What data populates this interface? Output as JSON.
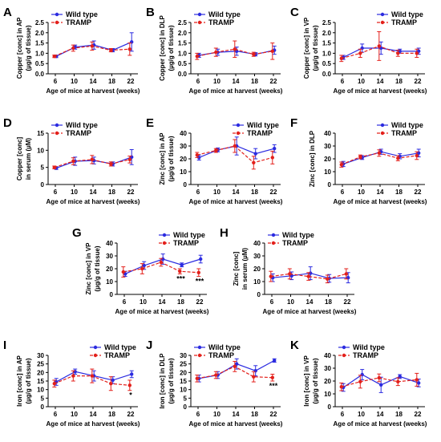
{
  "colors": {
    "wild_type": "#2b2be0",
    "tramp": "#e3201b",
    "axis": "#000000"
  },
  "chart_data": [
    {
      "type": "line",
      "label": "A",
      "x": [
        6,
        10,
        14,
        18,
        22
      ],
      "ylabel": [
        "Copper [conc] in AP",
        "(µg/g of tissue)"
      ],
      "xlabel": "Age of mice at harvest (weeks)",
      "ylim": [
        0,
        2.5
      ],
      "yticks": [
        "0.0",
        "0.5",
        "1.0",
        "1.5",
        "2.0",
        "2.5"
      ],
      "legend": "top-left",
      "series": [
        {
          "name": "Wild type",
          "values": [
            0.85,
            1.3,
            1.4,
            1.15,
            1.55
          ],
          "err": [
            0.06,
            0.1,
            0.2,
            0.08,
            0.45
          ]
        },
        {
          "name": "TRAMP",
          "values": [
            0.85,
            1.25,
            1.35,
            1.15,
            1.2
          ],
          "err": [
            0.06,
            0.15,
            0.2,
            0.08,
            0.3
          ]
        }
      ],
      "annotations": []
    },
    {
      "type": "line",
      "label": "B",
      "x": [
        6,
        10,
        14,
        18,
        22
      ],
      "ylabel": [
        "Copper [conc] in DLP",
        "(µg/g of tissue)"
      ],
      "xlabel": "Age of mice at harvest (weeks)",
      "ylim": [
        0,
        2.5
      ],
      "yticks": [
        "0.0",
        "0.5",
        "1.0",
        "1.5",
        "2.0",
        "2.5"
      ],
      "legend": "top-left",
      "series": [
        {
          "name": "Wild type",
          "values": [
            0.9,
            1.05,
            1.1,
            0.95,
            1.15
          ],
          "err": [
            0.1,
            0.15,
            0.2,
            0.08,
            0.2
          ]
        },
        {
          "name": "TRAMP",
          "values": [
            0.85,
            1.05,
            1.2,
            0.95,
            1.1
          ],
          "err": [
            0.15,
            0.2,
            0.4,
            0.1,
            0.4
          ]
        }
      ],
      "annotations": []
    },
    {
      "type": "line",
      "label": "C",
      "x": [
        6,
        10,
        14,
        18,
        22
      ],
      "ylabel": [
        "Copper [conc] in VP",
        "(µg/g of tissue)"
      ],
      "xlabel": "Age of mice at harvest (weeks)",
      "ylim": [
        0,
        2.5
      ],
      "yticks": [
        "0.0",
        "0.5",
        "1.0",
        "1.5",
        "2.0",
        "2.5"
      ],
      "legend": "top-right",
      "series": [
        {
          "name": "Wild type",
          "values": [
            0.8,
            1.25,
            1.25,
            1.1,
            1.1
          ],
          "err": [
            0.1,
            0.2,
            0.3,
            0.1,
            0.15
          ]
        },
        {
          "name": "TRAMP",
          "values": [
            0.75,
            1.0,
            1.35,
            1.0,
            1.0
          ],
          "err": [
            0.15,
            0.2,
            0.7,
            0.15,
            0.2
          ]
        }
      ],
      "annotations": []
    },
    {
      "type": "line",
      "label": "D",
      "x": [
        6,
        10,
        14,
        18,
        22
      ],
      "ylabel": [
        "Copper [conc]",
        "in serum (µM)"
      ],
      "xlabel": "Age of mice at harvest (weeks)",
      "ylim": [
        0,
        15
      ],
      "yticks": [
        "0",
        "5",
        "10",
        "15"
      ],
      "legend": "top-left",
      "series": [
        {
          "name": "Wild type",
          "values": [
            4.8,
            6.8,
            7.0,
            6.0,
            8.0
          ],
          "err": [
            0.4,
            1.2,
            1.0,
            0.6,
            2.2
          ]
        },
        {
          "name": "TRAMP",
          "values": [
            5.0,
            6.8,
            7.3,
            6.0,
            7.3
          ],
          "err": [
            0.4,
            1.0,
            1.2,
            0.6,
            1.0
          ]
        }
      ],
      "annotations": []
    },
    {
      "type": "line",
      "label": "E",
      "x": [
        6,
        10,
        14,
        18,
        22
      ],
      "ylabel": [
        "Zinc [conc] in AP",
        "(µg/g of tissue)"
      ],
      "xlabel": "Age of mice at harvest (weeks)",
      "ylim": [
        0,
        40
      ],
      "yticks": [
        "0",
        "10",
        "20",
        "30",
        "40"
      ],
      "legend": "top-right",
      "series": [
        {
          "name": "Wild type",
          "values": [
            21,
            27,
            30,
            24,
            28
          ],
          "err": [
            2,
            1.5,
            7,
            4,
            3
          ]
        },
        {
          "name": "TRAMP",
          "values": [
            23,
            26.5,
            30,
            17,
            21
          ],
          "err": [
            2,
            1.5,
            5,
            5,
            5
          ]
        }
      ],
      "annotations": []
    },
    {
      "type": "line",
      "label": "F",
      "x": [
        6,
        10,
        14,
        18,
        22
      ],
      "ylabel": [
        "Zinc [conc] in DLP",
        ""
      ],
      "xlabel": "Age of mice at harvest (weeks)",
      "ylim": [
        0,
        40
      ],
      "yticks": [
        "0",
        "10",
        "20",
        "30",
        "40"
      ],
      "legend": "top-right",
      "series": [
        {
          "name": "Wild type",
          "values": [
            16,
            21,
            25.5,
            22,
            24.5
          ],
          "err": [
            2,
            1.5,
            2,
            2,
            3
          ]
        },
        {
          "name": "TRAMP",
          "values": [
            15.5,
            21.5,
            24.5,
            20.5,
            22.5
          ],
          "err": [
            2,
            1.5,
            2.5,
            2,
            3
          ]
        }
      ],
      "annotations": []
    },
    {
      "type": "line",
      "label": "G",
      "x": [
        6,
        10,
        14,
        18,
        22
      ],
      "ylabel": [
        "Zinc [conc] in VP",
        "(µg/g of tissue)"
      ],
      "xlabel": "Age of mice at harvest (weeks)",
      "ylim": [
        0,
        40
      ],
      "yticks": [
        "0",
        "10",
        "20",
        "30",
        "40"
      ],
      "legend": "top-right",
      "series": [
        {
          "name": "Wild type",
          "values": [
            16,
            22.5,
            27.5,
            23,
            27.5
          ],
          "err": [
            2,
            3,
            4,
            1.5,
            3
          ]
        },
        {
          "name": "TRAMP",
          "values": [
            17.5,
            20,
            25,
            18,
            17
          ],
          "err": [
            4,
            4,
            3,
            2,
            3
          ]
        }
      ],
      "annotations": [
        {
          "x": 18,
          "text": "***"
        },
        {
          "x": 22,
          "text": "***"
        }
      ]
    },
    {
      "type": "line",
      "label": "H",
      "x": [
        6,
        10,
        14,
        18,
        22
      ],
      "ylabel": [
        "Zinc [conc]",
        "in serum (µM)"
      ],
      "xlabel": "Age of mice at harvest (weeks)",
      "ylim": [
        0,
        40
      ],
      "yticks": [
        "0",
        "10",
        "20",
        "30",
        "40"
      ],
      "legend": "top-left",
      "series": [
        {
          "name": "Wild type",
          "values": [
            13,
            14.5,
            16.5,
            12.5,
            13
          ],
          "err": [
            3,
            3,
            5,
            3,
            4
          ]
        },
        {
          "name": "TRAMP",
          "values": [
            14,
            16,
            14,
            12,
            16
          ],
          "err": [
            4,
            4,
            3,
            3,
            4
          ]
        }
      ],
      "annotations": []
    },
    {
      "type": "line",
      "label": "I",
      "x": [
        6,
        10,
        14,
        18,
        22
      ],
      "ylabel": [
        "Iron [conc] in AP",
        "(µg/g of tissue)"
      ],
      "xlabel": "Age of mice at harvest (weeks)",
      "ylim": [
        0,
        30
      ],
      "yticks": [
        "0",
        "5",
        "10",
        "15",
        "20",
        "25",
        "30"
      ],
      "legend": "top-right",
      "series": [
        {
          "name": "Wild type",
          "values": [
            14.5,
            20.5,
            18,
            15.5,
            19
          ],
          "err": [
            2,
            1.5,
            3,
            2,
            2
          ]
        },
        {
          "name": "TRAMP",
          "values": [
            13.5,
            18,
            18,
            13.5,
            12.5
          ],
          "err": [
            2,
            3,
            4,
            4,
            3
          ]
        }
      ],
      "annotations": [
        {
          "x": 22,
          "text": "*"
        }
      ]
    },
    {
      "type": "line",
      "label": "J",
      "x": [
        6,
        10,
        14,
        18,
        22
      ],
      "ylabel": [
        "Iron [conc] in DLP",
        "(µg/g of tissue)"
      ],
      "xlabel": "Age of mice at harvest (weeks)",
      "ylim": [
        0,
        30
      ],
      "yticks": [
        "0",
        "5",
        "10",
        "15",
        "20",
        "25",
        "30"
      ],
      "legend": "top-left",
      "series": [
        {
          "name": "Wild type",
          "values": [
            16.5,
            18.5,
            25,
            21,
            27
          ],
          "err": [
            2,
            2,
            3,
            3,
            1
          ]
        },
        {
          "name": "TRAMP",
          "values": [
            16.5,
            18.5,
            23.5,
            17.5,
            17
          ],
          "err": [
            2,
            2,
            3,
            3,
            2
          ]
        }
      ],
      "annotations": [
        {
          "x": 22,
          "text": "***"
        }
      ]
    },
    {
      "type": "line",
      "label": "K",
      "x": [
        6,
        10,
        14,
        18,
        22
      ],
      "ylabel": [
        "Iron [conc] in VP",
        "(µg/g of tissue)"
      ],
      "xlabel": "Age of mice at harvest (weeks)",
      "ylim": [
        0,
        40
      ],
      "yticks": [
        "0",
        "10",
        "20",
        "30",
        "40"
      ],
      "legend": "top-left",
      "series": [
        {
          "name": "Wild type",
          "values": [
            15,
            25,
            17,
            23.5,
            18.5
          ],
          "err": [
            3,
            4,
            6,
            1.5,
            3
          ]
        },
        {
          "name": "TRAMP",
          "values": [
            15.5,
            19.5,
            22.5,
            19.5,
            21
          ],
          "err": [
            3,
            5,
            3,
            3,
            5
          ]
        }
      ],
      "annotations": []
    }
  ]
}
